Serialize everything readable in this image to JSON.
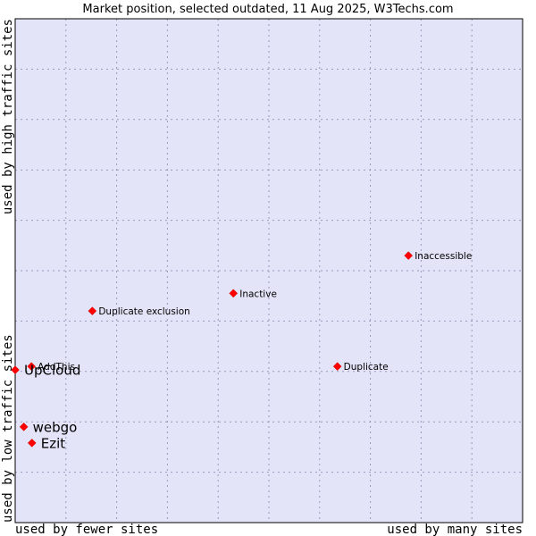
{
  "chart_data": {
    "type": "scatter",
    "title": "Market position, selected outdated, 11 Aug 2025, W3Techs.com",
    "xlabel_left": "used by fewer sites",
    "xlabel_right": "used by many sites",
    "ylabel_bottom": "used by low traffic sites",
    "ylabel_top": "used by high traffic sites",
    "xlim": [
      0,
      10
    ],
    "ylim": [
      0,
      10
    ],
    "grid": true,
    "colors": {
      "plot_background": "#e4e4f8",
      "grid": "#9999bb",
      "border": "#000000",
      "point": "#ff0000"
    },
    "points": [
      {
        "label": "Inaccessible",
        "x": 7.75,
        "y": 5.3,
        "label_size": "small"
      },
      {
        "label": "Inactive",
        "x": 4.3,
        "y": 4.55,
        "label_size": "small"
      },
      {
        "label": "Duplicate exclusion",
        "x": 1.52,
        "y": 4.2,
        "label_size": "small"
      },
      {
        "label": "AddThis",
        "x": 0.32,
        "y": 3.1,
        "label_size": "small"
      },
      {
        "label": "Duplicate",
        "x": 6.35,
        "y": 3.1,
        "label_size": "small"
      },
      {
        "label": "UpCloud",
        "x": 0.0,
        "y": 3.03,
        "label_size": "large"
      },
      {
        "label": "webgo",
        "x": 0.17,
        "y": 1.9,
        "label_size": "large"
      },
      {
        "label": "Ezit",
        "x": 0.33,
        "y": 1.58,
        "label_size": "large"
      }
    ]
  }
}
